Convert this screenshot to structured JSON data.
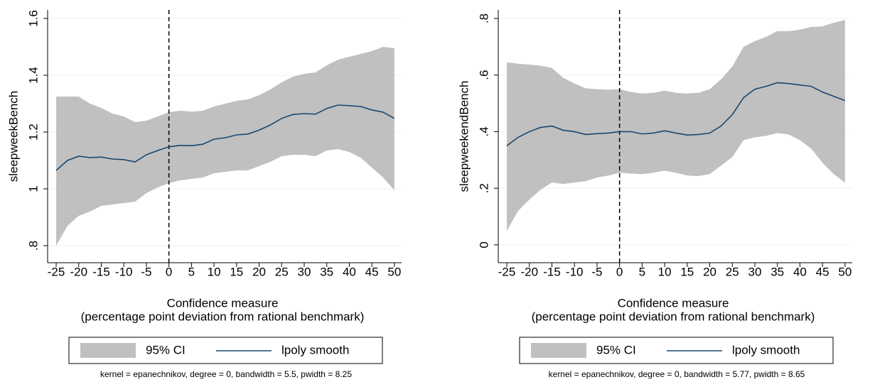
{
  "chart_data": [
    {
      "type": "line",
      "ylabel": "sleepweekBench",
      "xlabel": [
        "Confidence measure",
        "(percentage point deviation from rational benchmark)"
      ],
      "note": "kernel = epanechnikov, degree = 0, bandwidth = 5.5, pwidth = 8.25",
      "xlim": [
        -26.9,
        51.6
      ],
      "ylim": [
        0.74,
        1.63
      ],
      "xticks": [
        -25,
        -20,
        -15,
        -10,
        -5,
        0,
        5,
        10,
        15,
        20,
        25,
        30,
        35,
        40,
        45,
        50
      ],
      "yticks": [
        {
          "value": 0.8,
          "label": ".8"
        },
        1,
        1.2,
        1.4,
        1.6
      ],
      "grid": true,
      "xline": 0,
      "x": [
        -25,
        -22.5,
        -20,
        -17.5,
        -15,
        -12.5,
        -10,
        -7.5,
        -5,
        -2.5,
        0,
        2.5,
        5,
        7.5,
        10,
        12.5,
        15,
        17.5,
        20,
        22.5,
        25,
        27.5,
        30,
        32.5,
        35,
        37.5,
        40,
        42.5,
        45,
        47.5,
        50
      ],
      "series": [
        {
          "name": "95% CI",
          "color": "#c0c0c0",
          "upper": [
            1.325,
            1.325,
            1.325,
            1.3,
            1.285,
            1.265,
            1.255,
            1.235,
            1.24,
            1.255,
            1.27,
            1.275,
            1.272,
            1.275,
            1.29,
            1.3,
            1.31,
            1.315,
            1.33,
            1.35,
            1.375,
            1.395,
            1.405,
            1.41,
            1.435,
            1.455,
            1.465,
            1.475,
            1.485,
            1.5,
            1.495
          ],
          "lower": [
            0.8,
            0.87,
            0.905,
            0.92,
            0.94,
            0.945,
            0.95,
            0.955,
            0.985,
            1.005,
            1.02,
            1.03,
            1.035,
            1.04,
            1.055,
            1.06,
            1.065,
            1.065,
            1.08,
            1.095,
            1.115,
            1.12,
            1.12,
            1.115,
            1.135,
            1.14,
            1.13,
            1.11,
            1.075,
            1.04,
            0.995
          ]
        },
        {
          "name": "lpoly smooth",
          "color": "#1a476f",
          "values": [
            1.065,
            1.1,
            1.115,
            1.11,
            1.112,
            1.105,
            1.103,
            1.095,
            1.12,
            1.135,
            1.148,
            1.153,
            1.152,
            1.157,
            1.175,
            1.18,
            1.19,
            1.193,
            1.207,
            1.225,
            1.248,
            1.262,
            1.265,
            1.263,
            1.283,
            1.295,
            1.293,
            1.29,
            1.278,
            1.27,
            1.248
          ]
        }
      ]
    },
    {
      "type": "line",
      "ylabel": "sleepweekendBench",
      "xlabel": [
        "Confidence measure",
        "(percentage point deviation from rational benchmark)"
      ],
      "note": "kernel = epanechnikov, degree = 0, bandwidth = 5.77, pwidth = 8.65",
      "xlim": [
        -26.9,
        51.6
      ],
      "ylim": [
        -0.063,
        0.83
      ],
      "xticks": [
        -25,
        -20,
        -15,
        -10,
        -5,
        0,
        5,
        10,
        15,
        20,
        25,
        30,
        35,
        40,
        45,
        50
      ],
      "yticks": [
        0,
        {
          "value": 0.2,
          "label": ".2"
        },
        {
          "value": 0.4,
          "label": ".4"
        },
        {
          "value": 0.6,
          "label": ".6"
        },
        {
          "value": 0.8,
          "label": ".8"
        }
      ],
      "grid": true,
      "xline": 0,
      "x": [
        -25,
        -22.5,
        -20,
        -17.5,
        -15,
        -12.5,
        -10,
        -7.5,
        -5,
        -2.5,
        0,
        2.5,
        5,
        7.5,
        10,
        12.5,
        15,
        17.5,
        20,
        22.5,
        25,
        27.5,
        30,
        32.5,
        35,
        37.5,
        40,
        42.5,
        45,
        47.5,
        50
      ],
      "series": [
        {
          "name": "95% CI",
          "color": "#c0c0c0",
          "upper": [
            0.645,
            0.64,
            0.637,
            0.633,
            0.625,
            0.59,
            0.57,
            0.553,
            0.55,
            0.548,
            0.55,
            0.54,
            0.535,
            0.537,
            0.545,
            0.537,
            0.535,
            0.537,
            0.55,
            0.585,
            0.63,
            0.7,
            0.72,
            0.735,
            0.755,
            0.755,
            0.76,
            0.77,
            0.772,
            0.785,
            0.795
          ],
          "lower": [
            0.05,
            0.12,
            0.16,
            0.195,
            0.22,
            0.215,
            0.22,
            0.225,
            0.238,
            0.245,
            0.255,
            0.252,
            0.25,
            0.255,
            0.262,
            0.255,
            0.245,
            0.243,
            0.25,
            0.28,
            0.31,
            0.37,
            0.38,
            0.385,
            0.395,
            0.39,
            0.37,
            0.34,
            0.29,
            0.25,
            0.22
          ]
        },
        {
          "name": "lpoly smooth",
          "color": "#1a476f",
          "values": [
            0.35,
            0.38,
            0.4,
            0.415,
            0.42,
            0.405,
            0.4,
            0.39,
            0.393,
            0.395,
            0.4,
            0.4,
            0.392,
            0.395,
            0.403,
            0.395,
            0.388,
            0.39,
            0.395,
            0.42,
            0.46,
            0.52,
            0.55,
            0.56,
            0.573,
            0.57,
            0.565,
            0.56,
            0.54,
            0.525,
            0.51
          ]
        }
      ]
    }
  ]
}
